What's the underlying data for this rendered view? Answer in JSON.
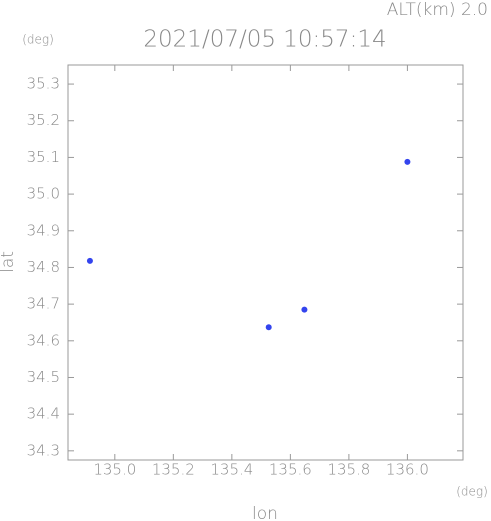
{
  "chart_data": {
    "type": "scatter",
    "title": "2021/07/05 10:57:14",
    "subtitle": "ALT(km) 2.0",
    "x_unit": "(deg)",
    "y_unit": "(deg)",
    "x_label": "lon",
    "y_label": "lat",
    "x": [
      134.915,
      135.648,
      135.526,
      136.0
    ],
    "y": [
      34.818,
      34.685,
      34.637,
      35.088
    ],
    "color": "#3344ee",
    "xlim": [
      134.84,
      136.19
    ],
    "ylim": [
      34.275,
      35.352
    ],
    "xticks": [
      {
        "value": 135,
        "label": "135.0"
      },
      135.2,
      135.4,
      135.6,
      135.8,
      {
        "value": 136,
        "label": "136.0"
      }
    ],
    "yticks": [
      34.3,
      34.4,
      34.5,
      34.6,
      34.7,
      34.8,
      34.9,
      {
        "value": 35,
        "label": "35.0"
      },
      35.1,
      35.2,
      35.3
    ],
    "grid": false
  }
}
